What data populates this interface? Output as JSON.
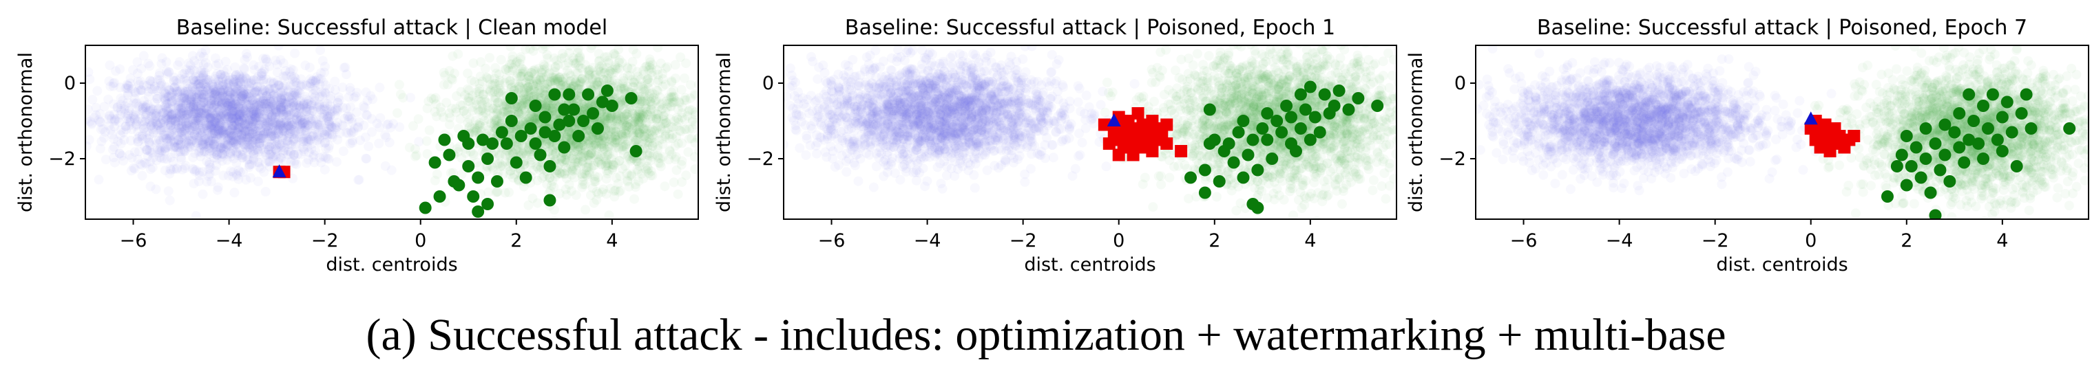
{
  "caption": "(a) Successful attack - includes: optimization + watermarking + multi-base",
  "colors": {
    "cloud_blue": "#6f6ff2",
    "cloud_green": "#4caf4c",
    "target_class_points": "#0a7a0a",
    "poison_points": "#ee0000",
    "target_marker": "#1010cc"
  },
  "chart_data": [
    {
      "type": "scatter",
      "title": "Baseline: Successful attack | Clean model",
      "xlabel": "dist. centroids",
      "ylabel": "dist. orthonormal",
      "xlim": [
        -7,
        5.8
      ],
      "ylim": [
        -3.6,
        1.0
      ],
      "xticks": [
        -6,
        -4,
        -2,
        0,
        2,
        4
      ],
      "yticks": [
        0,
        -2
      ],
      "grid": false,
      "clouds": [
        {
          "color": "blue",
          "center": [
            -4.0,
            -0.9
          ],
          "spread": [
            1.2,
            0.65
          ],
          "count": 2600
        },
        {
          "color": "green",
          "center": [
            3.2,
            -1.0
          ],
          "spread": [
            1.2,
            0.8
          ],
          "count": 2600
        }
      ],
      "target_class_points": [
        [
          0.1,
          -3.3
        ],
        [
          0.3,
          -2.1
        ],
        [
          0.4,
          -3.0
        ],
        [
          0.5,
          -1.5
        ],
        [
          0.6,
          -1.9
        ],
        [
          0.7,
          -2.6
        ],
        [
          0.8,
          -2.7
        ],
        [
          0.9,
          -1.4
        ],
        [
          1.0,
          -1.6
        ],
        [
          1.0,
          -2.2
        ],
        [
          1.1,
          -3.0
        ],
        [
          1.2,
          -3.4
        ],
        [
          1.2,
          -2.5
        ],
        [
          1.3,
          -1.5
        ],
        [
          1.4,
          -2.0
        ],
        [
          1.4,
          -3.2
        ],
        [
          1.5,
          -1.6
        ],
        [
          1.6,
          -2.6
        ],
        [
          1.7,
          -1.3
        ],
        [
          1.8,
          -1.6
        ],
        [
          1.9,
          -0.4
        ],
        [
          1.9,
          -1.0
        ],
        [
          2.0,
          -2.1
        ],
        [
          2.1,
          -1.4
        ],
        [
          2.2,
          -2.5
        ],
        [
          2.3,
          -1.2
        ],
        [
          2.4,
          -1.6
        ],
        [
          2.4,
          -0.6
        ],
        [
          2.5,
          -1.9
        ],
        [
          2.6,
          -1.3
        ],
        [
          2.6,
          -0.9
        ],
        [
          2.7,
          -2.2
        ],
        [
          2.7,
          -3.1
        ],
        [
          2.8,
          -1.4
        ],
        [
          2.8,
          -0.3
        ],
        [
          2.9,
          -1.1
        ],
        [
          3.0,
          -0.7
        ],
        [
          3.0,
          -1.7
        ],
        [
          3.1,
          -1.0
        ],
        [
          3.1,
          -0.3
        ],
        [
          3.2,
          -0.7
        ],
        [
          3.3,
          -1.4
        ],
        [
          3.4,
          -1.0
        ],
        [
          3.5,
          -0.3
        ],
        [
          3.6,
          -0.8
        ],
        [
          3.7,
          -1.2
        ],
        [
          3.8,
          -0.5
        ],
        [
          3.9,
          -0.2
        ],
        [
          4.0,
          -0.6
        ],
        [
          4.4,
          -0.4
        ],
        [
          4.5,
          -1.8
        ]
      ],
      "poison_points": [
        [
          -2.95,
          -2.35
        ],
        [
          -2.85,
          -2.35
        ]
      ],
      "target": [
        -2.95,
        -2.35
      ]
    },
    {
      "type": "scatter",
      "title": "Baseline: Successful attack | Poisoned, Epoch 1",
      "xlabel": "dist. centroids",
      "ylabel": "dist. orthonormal",
      "xlim": [
        -7,
        5.8
      ],
      "ylim": [
        -3.6,
        1.0
      ],
      "xticks": [
        -6,
        -4,
        -2,
        0,
        2,
        4
      ],
      "yticks": [
        0,
        -2
      ],
      "grid": false,
      "clouds": [
        {
          "color": "blue",
          "center": [
            -3.8,
            -0.8
          ],
          "spread": [
            1.25,
            0.65
          ],
          "count": 2600
        },
        {
          "color": "green",
          "center": [
            3.4,
            -1.0
          ],
          "spread": [
            1.2,
            0.85
          ],
          "count": 2600
        }
      ],
      "target_class_points": [
        [
          1.5,
          -2.5
        ],
        [
          1.8,
          -2.3
        ],
        [
          1.8,
          -2.9
        ],
        [
          1.9,
          -0.7
        ],
        [
          1.9,
          -1.6
        ],
        [
          2.0,
          -1.5
        ],
        [
          2.1,
          -2.6
        ],
        [
          2.2,
          -1.8
        ],
        [
          2.3,
          -1.6
        ],
        [
          2.4,
          -2.1
        ],
        [
          2.5,
          -1.3
        ],
        [
          2.6,
          -2.5
        ],
        [
          2.6,
          -1.0
        ],
        [
          2.7,
          -1.9
        ],
        [
          2.8,
          -3.2
        ],
        [
          2.8,
          -1.5
        ],
        [
          2.9,
          -2.3
        ],
        [
          2.9,
          -3.3
        ],
        [
          3.0,
          -1.2
        ],
        [
          3.1,
          -1.5
        ],
        [
          3.1,
          -0.8
        ],
        [
          3.2,
          -2.0
        ],
        [
          3.3,
          -1.0
        ],
        [
          3.4,
          -1.3
        ],
        [
          3.5,
          -0.6
        ],
        [
          3.6,
          -1.6
        ],
        [
          3.6,
          -0.9
        ],
        [
          3.7,
          -1.8
        ],
        [
          3.8,
          -0.3
        ],
        [
          3.8,
          -1.2
        ],
        [
          3.9,
          -0.7
        ],
        [
          4.0,
          -1.5
        ],
        [
          4.0,
          -0.1
        ],
        [
          4.1,
          -0.9
        ],
        [
          4.2,
          -1.3
        ],
        [
          4.3,
          -0.3
        ],
        [
          4.4,
          -0.8
        ],
        [
          4.5,
          -0.6
        ],
        [
          4.6,
          -0.2
        ],
        [
          4.8,
          -0.7
        ],
        [
          5.0,
          -0.4
        ],
        [
          5.4,
          -0.6
        ]
      ],
      "poison_points": [
        [
          -0.3,
          -1.1
        ],
        [
          -0.2,
          -1.6
        ],
        [
          -0.1,
          -1.3
        ],
        [
          0.0,
          -0.9
        ],
        [
          0.0,
          -1.5
        ],
        [
          0.0,
          -1.9
        ],
        [
          0.1,
          -1.2
        ],
        [
          0.1,
          -1.7
        ],
        [
          0.2,
          -1.4
        ],
        [
          0.2,
          -1.0
        ],
        [
          0.3,
          -1.6
        ],
        [
          0.3,
          -1.2
        ],
        [
          0.3,
          -1.9
        ],
        [
          0.4,
          -1.4
        ],
        [
          0.4,
          -0.8
        ],
        [
          0.5,
          -1.1
        ],
        [
          0.5,
          -1.7
        ],
        [
          0.6,
          -1.3
        ],
        [
          0.6,
          -1.5
        ],
        [
          0.7,
          -1.0
        ],
        [
          0.7,
          -1.8
        ],
        [
          0.8,
          -1.2
        ],
        [
          0.8,
          -1.5
        ],
        [
          0.9,
          -1.4
        ],
        [
          1.0,
          -1.1
        ],
        [
          1.0,
          -1.6
        ],
        [
          1.3,
          -1.8
        ]
      ],
      "target": [
        -0.1,
        -1.0
      ]
    },
    {
      "type": "scatter",
      "title": "Baseline: Successful attack | Poisoned, Epoch 7",
      "xlabel": "dist. centroids",
      "ylabel": "dist. orthonormal",
      "xlim": [
        -7,
        5.8
      ],
      "ylim": [
        -3.6,
        1.0
      ],
      "xticks": [
        -6,
        -4,
        -2,
        0,
        2,
        4
      ],
      "yticks": [
        0,
        -2
      ],
      "grid": false,
      "clouds": [
        {
          "color": "blue",
          "center": [
            -3.7,
            -1.0
          ],
          "spread": [
            1.25,
            0.6
          ],
          "count": 2600
        },
        {
          "color": "green",
          "center": [
            3.4,
            -1.3
          ],
          "spread": [
            1.1,
            0.8
          ],
          "count": 2600
        }
      ],
      "target_class_points": [
        [
          1.6,
          -3.0
        ],
        [
          1.8,
          -2.2
        ],
        [
          1.9,
          -1.9
        ],
        [
          2.0,
          -1.4
        ],
        [
          2.0,
          -2.7
        ],
        [
          2.1,
          -2.2
        ],
        [
          2.2,
          -1.7
        ],
        [
          2.3,
          -2.5
        ],
        [
          2.4,
          -1.2
        ],
        [
          2.4,
          -2.0
        ],
        [
          2.5,
          -2.9
        ],
        [
          2.6,
          -1.6
        ],
        [
          2.6,
          -3.5
        ],
        [
          2.7,
          -2.3
        ],
        [
          2.8,
          -1.1
        ],
        [
          2.8,
          -1.9
        ],
        [
          2.9,
          -2.6
        ],
        [
          3.0,
          -1.3
        ],
        [
          3.1,
          -1.7
        ],
        [
          3.1,
          -0.8
        ],
        [
          3.2,
          -2.1
        ],
        [
          3.3,
          -1.5
        ],
        [
          3.3,
          -0.3
        ],
        [
          3.4,
          -1.0
        ],
        [
          3.5,
          -1.6
        ],
        [
          3.6,
          -0.6
        ],
        [
          3.6,
          -2.0
        ],
        [
          3.7,
          -1.2
        ],
        [
          3.8,
          -0.3
        ],
        [
          3.9,
          -1.5
        ],
        [
          4.0,
          -0.9
        ],
        [
          4.0,
          -1.8
        ],
        [
          4.1,
          -0.5
        ],
        [
          4.2,
          -1.3
        ],
        [
          4.3,
          -2.2
        ],
        [
          4.4,
          -0.8
        ],
        [
          4.5,
          -0.3
        ],
        [
          4.6,
          -1.2
        ],
        [
          5.4,
          -1.2
        ]
      ],
      "poison_points": [
        [
          0.0,
          -1.2
        ],
        [
          0.1,
          -1.5
        ],
        [
          0.1,
          -1.0
        ],
        [
          0.2,
          -1.3
        ],
        [
          0.2,
          -1.7
        ],
        [
          0.3,
          -1.1
        ],
        [
          0.3,
          -1.5
        ],
        [
          0.4,
          -1.3
        ],
        [
          0.4,
          -1.8
        ],
        [
          0.5,
          -1.2
        ],
        [
          0.5,
          -1.6
        ],
        [
          0.6,
          -1.4
        ],
        [
          0.7,
          -1.7
        ],
        [
          0.8,
          -1.5
        ],
        [
          0.9,
          -1.4
        ]
      ],
      "target": [
        0.0,
        -0.95
      ]
    }
  ]
}
